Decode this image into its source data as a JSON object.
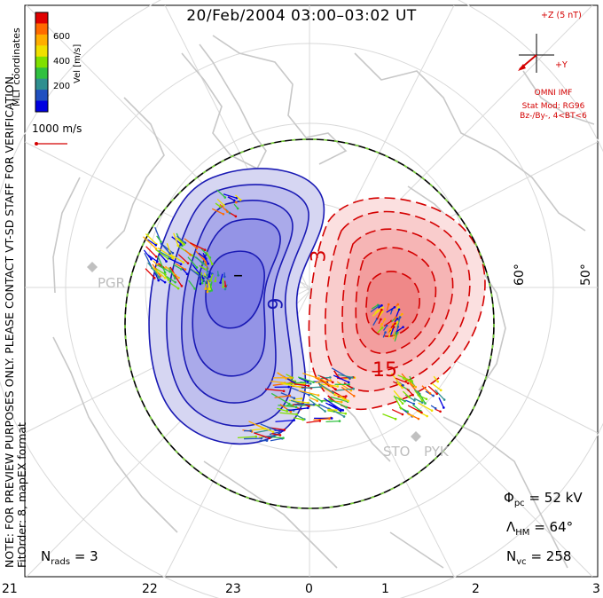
{
  "title": "20/Feb/2004 03:00–03:02 UT",
  "side_note": {
    "line1": "NOTE: FOR PREVIEW PURPOSES ONLY. PLEASE CONTACT VT-SD STAFF FOR VERIFICATION.",
    "line2": "FitOrder: 8, mapEX format"
  },
  "colorbar": {
    "title": "MLT coordinates",
    "unit": "Vel [m/s]",
    "ticks": [
      "600",
      "400",
      "200"
    ],
    "colors": [
      "#e00000",
      "#ff6a00",
      "#ffae00",
      "#f0e000",
      "#80e000",
      "#30c040",
      "#2f8f8f",
      "#2050c0",
      "#0000e0"
    ]
  },
  "vector_scale": {
    "label": "1000 m/s",
    "color": "#d40000"
  },
  "imf": {
    "z_label": "+Z (5 nT)",
    "y_label": "+Y",
    "source": "OMNI IMF",
    "model": "Stat Mod: RG96",
    "condition": "Bz-/By-, 4<BT<6",
    "color": "#d40000"
  },
  "latitude_labels": [
    "60°",
    "50°"
  ],
  "contour_labels": {
    "neg_min": "–",
    "neg_level": "9",
    "pos_level_a": "3",
    "pos_level_b": "15"
  },
  "sites": [
    "PGR",
    "STO",
    "PYK"
  ],
  "stats": {
    "phi_pc": {
      "sym": "Φ",
      "sub": "pc",
      "value": "= 52 kV"
    },
    "lambda_hm": {
      "sym": "Λ",
      "sub": "HM",
      "value": "= 64°"
    },
    "n_vc": {
      "sym": "N",
      "sub": "vc",
      "value": "= 258"
    },
    "n_rads": {
      "sym": "N",
      "sub": "rads",
      "value": "= 3"
    }
  },
  "mlt_labels": [
    "21",
    "22",
    "23",
    "0",
    "1",
    "2",
    "3"
  ],
  "colors": {
    "negative_fill": "#5a5ae6",
    "positive_fill": "#f07070",
    "negative_line": "#1a1ab4",
    "positive_line": "#d40000",
    "land": "#c8c8c8",
    "grid": "#d9d9d9"
  }
}
